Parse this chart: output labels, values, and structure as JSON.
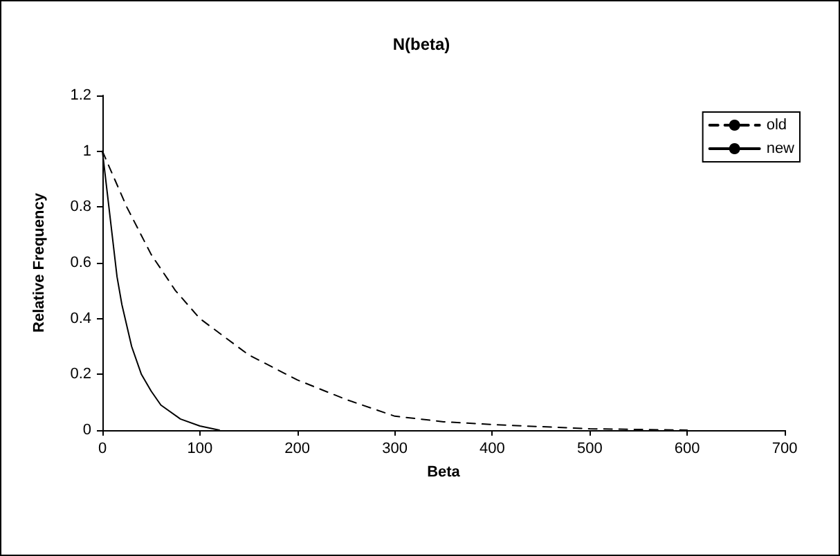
{
  "chart_data": {
    "type": "line",
    "title": "N(beta)",
    "xlabel": "Beta",
    "ylabel": "Relative Frequency",
    "xlim": [
      0,
      700
    ],
    "xticks": [
      0,
      100,
      200,
      300,
      400,
      500,
      600,
      700
    ],
    "ylim": [
      0,
      1.2
    ],
    "yticks": [
      0,
      0.2,
      0.4,
      0.6,
      0.8,
      1,
      1.2
    ],
    "legend": "top right",
    "grid": false,
    "marker": "none",
    "series": [
      {
        "name": "old",
        "color": "#000000",
        "line_style": "dashed",
        "x": [
          0,
          25,
          50,
          75,
          100,
          150,
          200,
          250,
          300,
          350,
          400,
          500,
          600
        ],
        "values": [
          1,
          0.8,
          0.63,
          0.5,
          0.4,
          0.27,
          0.18,
          0.11,
          0.05,
          0.03,
          0.02,
          0.005,
          0
        ]
      },
      {
        "name": "new",
        "color": "#000000",
        "line_style": "solid",
        "x": [
          0,
          5,
          10,
          15,
          20,
          30,
          40,
          50,
          60,
          80,
          100,
          120
        ],
        "values": [
          1,
          0.85,
          0.7,
          0.55,
          0.45,
          0.3,
          0.2,
          0.14,
          0.09,
          0.04,
          0.015,
          0
        ]
      }
    ]
  }
}
